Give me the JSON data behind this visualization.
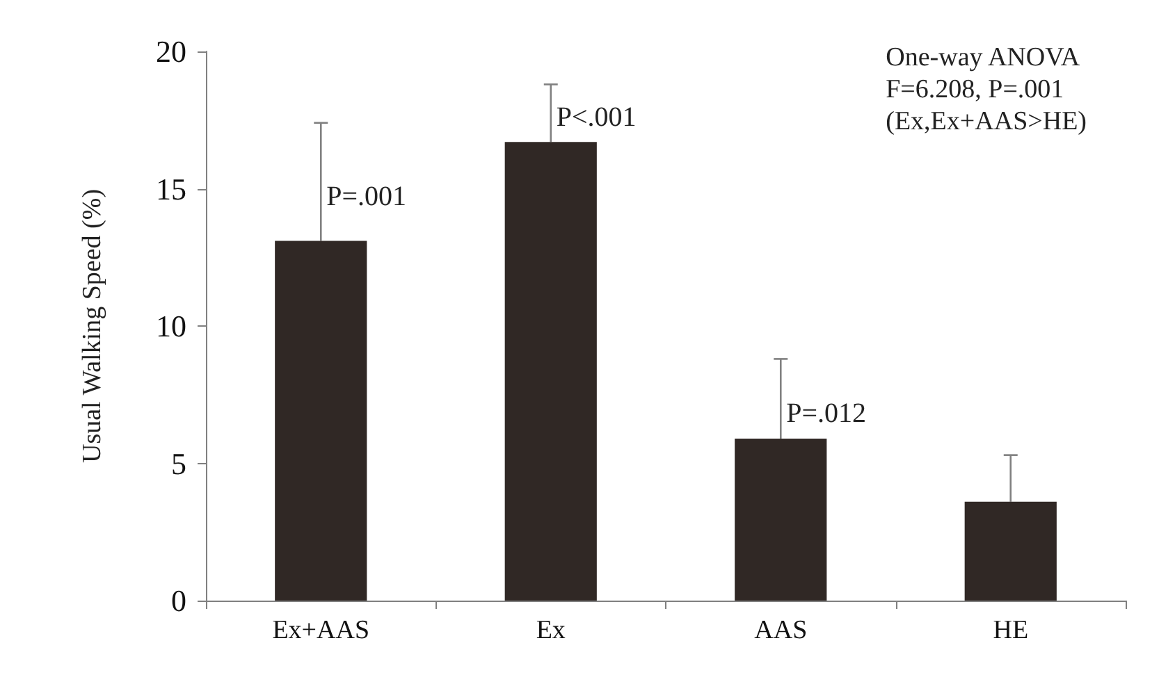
{
  "chart_data": {
    "type": "bar",
    "ylabel": "Usual Walking Speed (%)",
    "categories": [
      "Ex+AAS",
      "Ex",
      "AAS",
      "HE"
    ],
    "values": [
      13.1,
      16.7,
      5.9,
      3.6
    ],
    "color": "#302825",
    "errors": [
      [
        13.1,
        17.4
      ],
      [
        16.7,
        18.8
      ],
      [
        5.9,
        8.8
      ],
      [
        3.6,
        5.3
      ]
    ],
    "ylim": [
      0,
      20
    ],
    "yticks": [
      0,
      5,
      10,
      15,
      20
    ],
    "grid": false,
    "annotations": [
      {
        "text": "P=.001",
        "x": "Ex+AAS",
        "y": 14.7
      },
      {
        "text": "P<.001",
        "x": "Ex",
        "y": 17.6
      },
      {
        "text": "P=.012",
        "x": "AAS",
        "y": 6.8
      },
      "One-way ANOVA",
      "F=6.208, P=.001",
      "(Ex,Ex+AAS>HE)"
    ]
  }
}
